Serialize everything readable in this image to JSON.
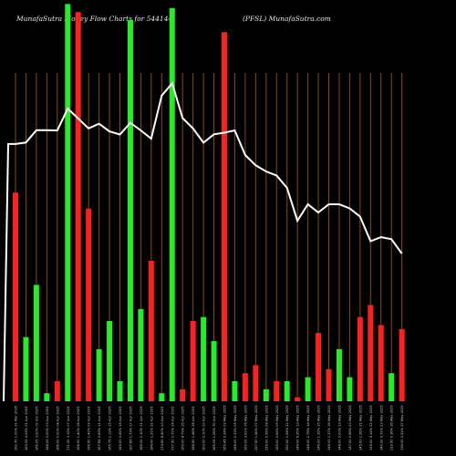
{
  "header": {
    "left": "MunafaSutra  Money Flow  Charts for 544144",
    "middle": "(PFSL) MunafaSutra.com"
  },
  "colors": {
    "background": "#000000",
    "up": "#22ee22",
    "down": "#ff1f1f",
    "gridline": "#8a4a10",
    "price_line": "#ffffff",
    "text": "#e8e8e8"
  },
  "chart_data": {
    "type": "bar",
    "title": "MunafaSutra  Money Flow  Charts for 544144",
    "subtitle": "(PFSL) MunafaSutra.com",
    "grid": true,
    "categories": [
      "162.70 1.00% 31 Mar 2025",
      "163.05 4.09% 01 Apr 2025",
      "166.05 3.20% 02 Apr 2025",
      "166.05 0.00% 03 Apr 2025",
      "166.00 0.00% 04 Apr 2025",
      "171.30 3.19% 07 Apr 2025",
      "168.90 1.40% 08 Apr 2025",
      "166.50 1.42% 09 Apr 2025",
      "167.65 0.69% 11 Apr 2025",
      "165.75 1.13% 15 Apr 2025",
      "165.00 0.45% 16 Apr 2025",
      "167.85 1.73% 17 Apr 2025",
      "166.00 1.10% 21 Apr 2025",
      "164.00 1.21% 22 Apr 2025",
      "174.50 6.40% 23 Apr 2025",
      "177.50 1.72% 24 Apr 2025",
      "169.00 4.79% 25 Apr 2025",
      "166.50 1.48% 28 Apr 2025",
      "163.00 2.10% 29 Apr 2025",
      "165.05 1.26% 30 Apr 2025",
      "165.45 0.24% 02 May 2025",
      "166.00 0.33% 05 May 2025",
      "160.00 3.61% 06 May 2025",
      "157.50 1.56% 07 May 2025",
      "156.00 0.95% 08 May 2025",
      "155.00 0.64% 09 May 2025",
      "152.00 1.94% 12 May 2025",
      "144.00 5.26% 13 May 2025",
      "148.00 2.78% 14 May 2025",
      "146.00 1.35% 15 May 2025",
      "148.00 1.37% 16 May 2025",
      "148.00 0.00% 19 May 2025",
      "147.00 0.68% 20 May 2025",
      "145.00 1.36% 21 May 2025",
      "139.00 4.14% 22 May 2025",
      "140.00 0.72% 23 May 2025",
      "139.50 0.36% 26 May 2025",
      "136.00 2.51% 27 May 2025"
    ],
    "series": [
      {
        "colors": [
          "down",
          "up",
          "up",
          "up",
          "down",
          "up",
          "down",
          "down",
          "up",
          "up",
          "up",
          "up",
          "up",
          "down",
          "up",
          "up",
          "down",
          "down",
          "up",
          "up",
          "down",
          "up",
          "down",
          "down",
          "up",
          "down",
          "up",
          "down",
          "up",
          "down",
          "down",
          "up",
          "up",
          "down",
          "down",
          "down",
          "up",
          "down"
        ],
        "values": [
          52,
          16,
          29,
          2,
          5,
          99,
          97,
          48,
          13,
          20,
          5,
          95,
          23,
          35,
          2,
          98,
          3,
          20,
          21,
          15,
          92,
          5,
          7,
          9,
          3,
          5,
          5,
          1,
          6,
          17,
          8,
          13,
          6,
          21,
          24,
          19,
          7,
          18
        ]
      }
    ],
    "price_line": [
      162.7,
      163.05,
      166.05,
      166.05,
      166.0,
      171.3,
      168.9,
      166.5,
      167.65,
      165.75,
      165.0,
      167.85,
      166.0,
      164.0,
      174.5,
      177.5,
      169.0,
      166.5,
      163.0,
      165.05,
      165.45,
      166.0,
      160.0,
      157.5,
      156.0,
      155.0,
      152.0,
      144.0,
      148.0,
      146.0,
      148.0,
      148.0,
      147.0,
      145.0,
      139.0,
      140.0,
      139.5,
      136.0
    ],
    "ylim": [
      0,
      100
    ],
    "price_range": [
      100,
      180
    ]
  }
}
